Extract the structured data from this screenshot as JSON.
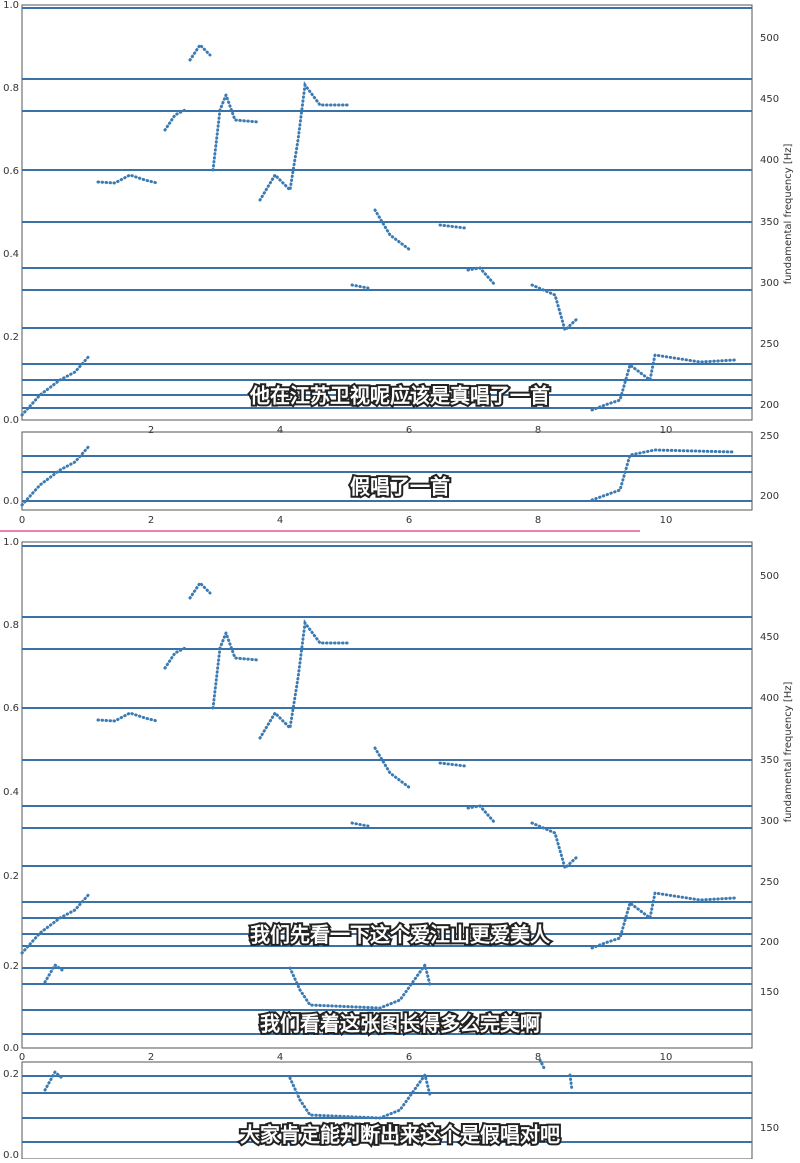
{
  "frames": [
    {
      "left_ticks": [
        "1.0",
        "0.8",
        "0.6",
        "0.4",
        "0.2",
        "0.0"
      ],
      "right_ticks": [
        "500",
        "450",
        "400",
        "350",
        "300",
        "250",
        "200"
      ],
      "right_axis_label": "fundamental frequency [Hz]",
      "x_ticks": [
        "2",
        "4",
        "6",
        "8",
        "10"
      ],
      "subtitles": [
        "他在江苏卫视呢应该是真唱了一首"
      ]
    },
    {
      "left_ticks": [
        "0.0"
      ],
      "right_ticks": [
        "250",
        "200"
      ],
      "x_ticks": [
        "0",
        "2",
        "4",
        "6",
        "8",
        "10"
      ],
      "subtitles": [
        "假唱了一首"
      ]
    },
    {
      "left_ticks": [
        "1.0",
        "0.8",
        "0.6",
        "0.4",
        "0.2",
        "0.2",
        "0.0"
      ],
      "right_ticks": [
        "500",
        "450",
        "400",
        "350",
        "300",
        "250",
        "200",
        "150"
      ],
      "right_axis_label": "fundamental frequency [Hz]",
      "x_ticks": [
        "0",
        "2",
        "4",
        "6",
        "8",
        "10"
      ],
      "subtitles": [
        "我们先看一下这个爱江山更爱美人",
        "我们看着这张图长得多么完美啊"
      ]
    },
    {
      "left_ticks": [
        "0.2",
        "0.0"
      ],
      "right_ticks": [
        "150"
      ],
      "subtitles": [
        "大家肯定能判断出来这个是假唱对吧"
      ]
    }
  ]
}
